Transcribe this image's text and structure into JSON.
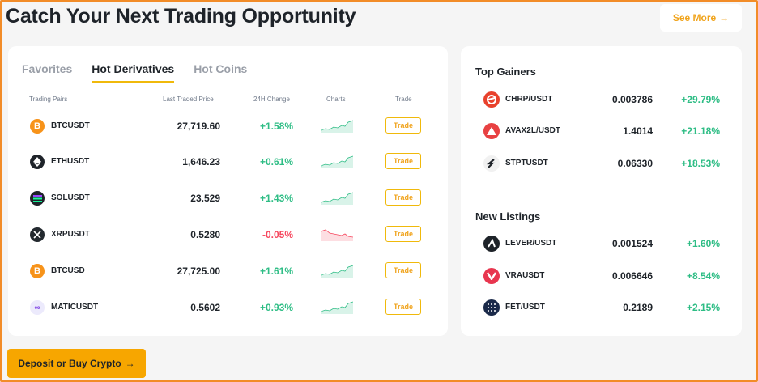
{
  "header": {
    "title": "Catch Your Next Trading Opportunity",
    "see_more": "See More",
    "see_more_arrow": "→"
  },
  "tabs": [
    {
      "label": "Favorites",
      "active": false
    },
    {
      "label": "Hot Derivatives",
      "active": true
    },
    {
      "label": "Hot Coins",
      "active": false
    }
  ],
  "table": {
    "headers": [
      "Trading Pairs",
      "Last Traded Price",
      "24H Change",
      "Charts",
      "Trade"
    ],
    "trade_label": "Trade",
    "rows": [
      {
        "pair": "BTCUSDT",
        "price": "27,719.60",
        "change": "+1.58%",
        "direction": "up",
        "icon": "bitcoin-icon",
        "icon_color": "#f7931a"
      },
      {
        "pair": "ETHUSDT",
        "price": "1,646.23",
        "change": "+0.61%",
        "direction": "up",
        "icon": "ethereum-icon",
        "icon_color": "#1e2329"
      },
      {
        "pair": "SOLUSDT",
        "price": "23.529",
        "change": "+1.43%",
        "direction": "up",
        "icon": "solana-icon",
        "icon_color": "#1e2329"
      },
      {
        "pair": "XRPUSDT",
        "price": "0.5280",
        "change": "-0.05%",
        "direction": "down",
        "icon": "xrp-icon",
        "icon_color": "#23292f"
      },
      {
        "pair": "BTCUSD",
        "price": "27,725.00",
        "change": "+1.61%",
        "direction": "up",
        "icon": "bitcoin-icon",
        "icon_color": "#f7931a"
      },
      {
        "pair": "MATICUSDT",
        "price": "0.5602",
        "change": "+0.93%",
        "direction": "up",
        "icon": "polygon-icon",
        "icon_color": "#eceafc"
      }
    ]
  },
  "top_gainers": {
    "title": "Top Gainers",
    "items": [
      {
        "pair": "CHRP/USDT",
        "price": "0.003786",
        "change": "+29.79%",
        "icon": "chirpley-icon",
        "icon_color": "#e8412c"
      },
      {
        "pair": "AVAX2L/USDT",
        "price": "1.4014",
        "change": "+21.18%",
        "icon": "avalanche-icon",
        "icon_color": "#e84142"
      },
      {
        "pair": "STPTUSDT",
        "price": "0.06330",
        "change": "+18.53%",
        "icon": "stpt-icon",
        "icon_color": "#f1f1f1"
      }
    ]
  },
  "new_listings": {
    "title": "New Listings",
    "items": [
      {
        "pair": "LEVER/USDT",
        "price": "0.001524",
        "change": "+1.60%",
        "icon": "lever-icon",
        "icon_color": "#1e2329"
      },
      {
        "pair": "VRAUSDT",
        "price": "0.006646",
        "change": "+8.54%",
        "icon": "verasity-icon",
        "icon_color": "#e8364f"
      },
      {
        "pair": "FET/USDT",
        "price": "0.2189",
        "change": "+2.15%",
        "icon": "fetch-icon",
        "icon_color": "#1b2a4a"
      }
    ]
  },
  "deposit_button": {
    "label": "Deposit or Buy Crypto",
    "arrow": "→"
  },
  "colors": {
    "accent": "#f0b90b",
    "up": "#2ebd85",
    "down": "#f6465d",
    "frame": "#f28c28"
  }
}
